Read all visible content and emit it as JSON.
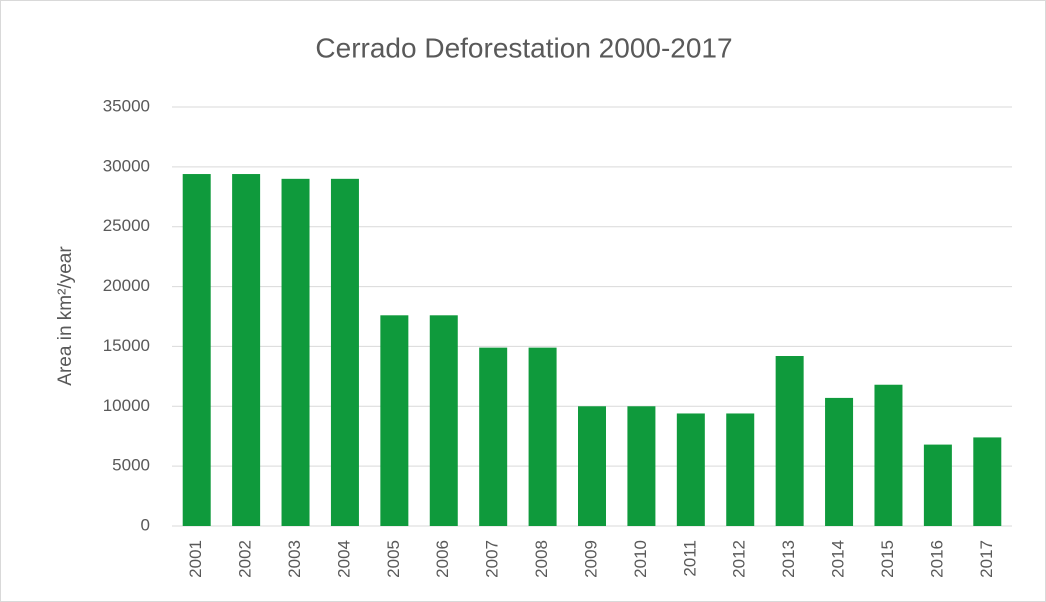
{
  "chart_data": {
    "type": "bar",
    "title": "Cerrado Deforestation 2000-2017",
    "y_label": "Area in km²/year",
    "categories": [
      "2001",
      "2002",
      "2003",
      "2004",
      "2005",
      "2006",
      "2007",
      "2008",
      "2009",
      "2010",
      "2011",
      "2012",
      "2013",
      "2014",
      "2015",
      "2016",
      "2017"
    ],
    "values": [
      29400,
      29400,
      29000,
      29000,
      17600,
      17600,
      14900,
      14900,
      10000,
      10000,
      9400,
      9400,
      14200,
      10700,
      11800,
      6800,
      7400
    ],
    "color": "#0f9a3c",
    "ylim": [
      0,
      35000
    ],
    "yticks": [
      0,
      5000,
      10000,
      15000,
      20000,
      25000,
      30000,
      35000
    ],
    "grid": true
  }
}
